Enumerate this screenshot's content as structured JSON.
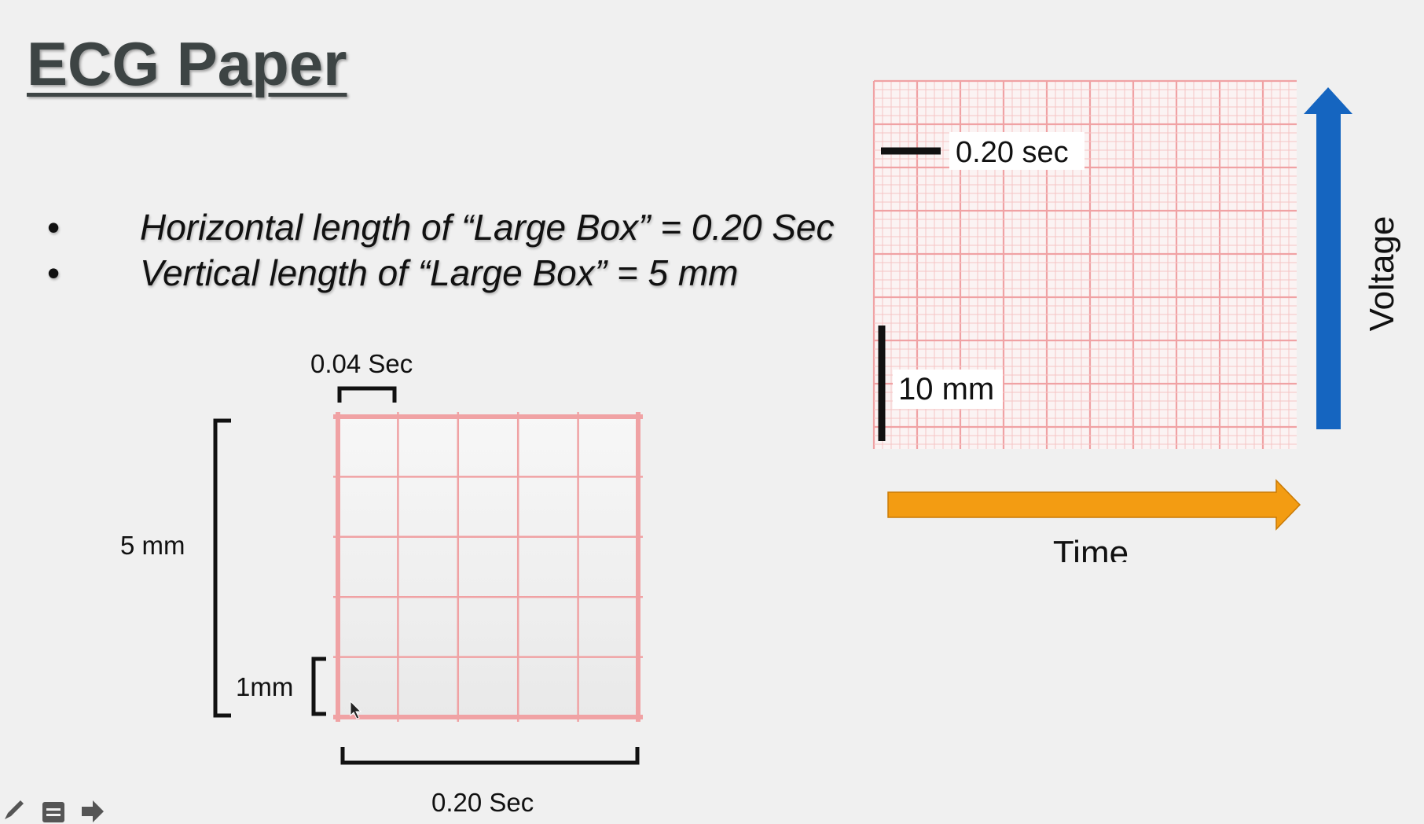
{
  "slide": {
    "title": "ECG Paper",
    "bullets": [
      "Horizontal length of “Large Box” = 0.20 Sec",
      "Vertical length of “Large Box” = 5 mm"
    ],
    "bullet_marker": "•"
  },
  "small_grid": {
    "top_label": "0.04 Sec",
    "left_label": "5 mm",
    "small_label": "1mm",
    "bottom_label": "0.20 Sec",
    "divisions": 5
  },
  "big_grid": {
    "time_scale_label": "0.20 sec",
    "voltage_scale_label": "10 mm",
    "x_axis_label": "Time",
    "y_axis_label": "Voltage"
  },
  "colors": {
    "grid_line": "#f0a2a4",
    "grid_fine": "#f6c4c5",
    "time_arrow": "#f39c12",
    "voltage_arrow": "#1565c0",
    "title": "#3d4444"
  },
  "toolbar": {
    "icons": [
      "pen-icon",
      "notes-icon",
      "next-arrow-icon"
    ]
  }
}
